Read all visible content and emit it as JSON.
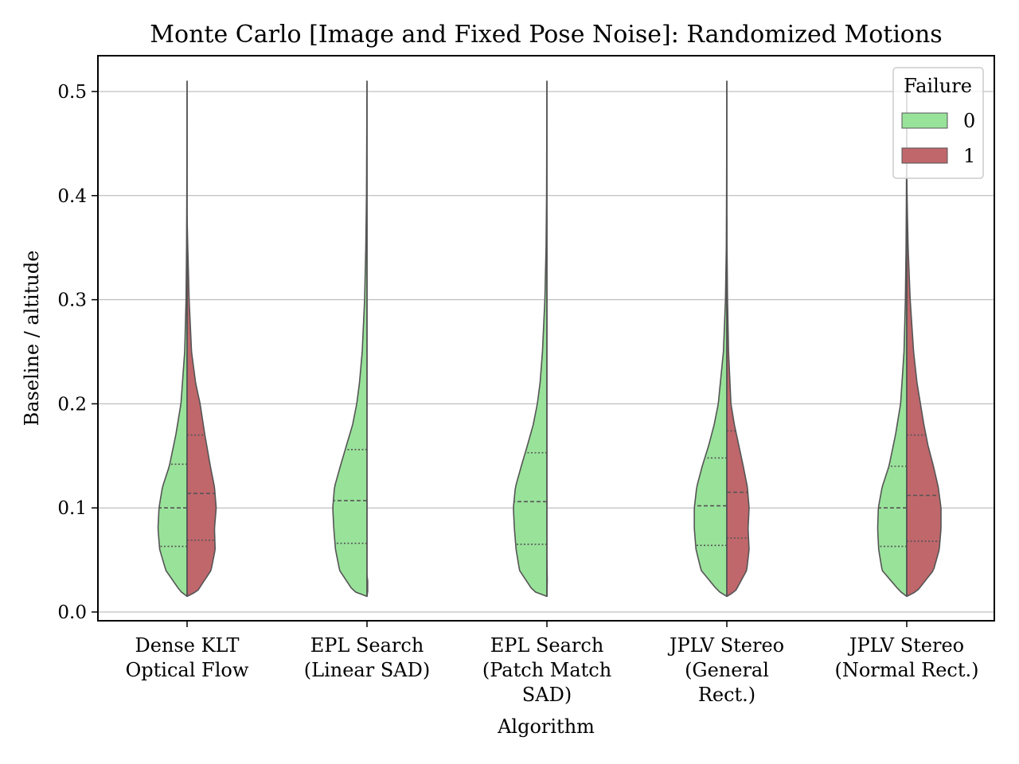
{
  "chart_data": {
    "type": "violin",
    "split": true,
    "title": "Monte Carlo [Image and Fixed Pose Noise]: Randomized Motions",
    "xlabel": "Algorithm",
    "ylabel": "Baseline / altitude",
    "ylim": [
      -0.01,
      0.54
    ],
    "yticks": [
      "0.0",
      "0.1",
      "0.2",
      "0.3",
      "0.4",
      "0.5"
    ],
    "grid": "horizontal",
    "categories": [
      [
        "Dense KLT",
        "Optical Flow"
      ],
      [
        "EPL Search",
        "(Linear SAD)"
      ],
      [
        "EPL Search",
        "(Patch Match",
        "SAD)"
      ],
      [
        "JPLV Stereo",
        "(General",
        "Rect.)"
      ],
      [
        "JPLV Stereo",
        "(Normal Rect.)"
      ]
    ],
    "legend": {
      "title": "Failure",
      "placement": "upper-right",
      "entries": [
        {
          "label": "0",
          "color": "#99e29a"
        },
        {
          "label": "1",
          "color": "#c0676b"
        }
      ]
    },
    "colors": {
      "failure_0": "#99e29a",
      "failure_1": "#c0676b",
      "outline": "#555555"
    },
    "violins": [
      {
        "left": {
          "profile": [
            [
              0.015,
              0.0
            ],
            [
              0.02,
              0.2
            ],
            [
              0.04,
              0.62
            ],
            [
              0.06,
              0.8
            ],
            [
              0.08,
              0.85
            ],
            [
              0.1,
              0.82
            ],
            [
              0.12,
              0.72
            ],
            [
              0.14,
              0.52
            ],
            [
              0.17,
              0.33
            ],
            [
              0.2,
              0.18
            ],
            [
              0.25,
              0.07
            ],
            [
              0.3,
              0.03
            ],
            [
              0.35,
              0.015
            ],
            [
              0.4,
              0.008
            ],
            [
              0.45,
              0.004
            ],
            [
              0.51,
              0.0
            ]
          ],
          "quartiles": [
            0.063,
            0.1,
            0.142
          ]
        },
        "right": {
          "profile": [
            [
              0.015,
              0.0
            ],
            [
              0.02,
              0.3
            ],
            [
              0.04,
              0.7
            ],
            [
              0.06,
              0.82
            ],
            [
              0.08,
              0.8
            ],
            [
              0.1,
              0.85
            ],
            [
              0.12,
              0.8
            ],
            [
              0.14,
              0.68
            ],
            [
              0.17,
              0.52
            ],
            [
              0.2,
              0.38
            ],
            [
              0.22,
              0.25
            ],
            [
              0.25,
              0.13
            ],
            [
              0.3,
              0.06
            ],
            [
              0.35,
              0.02
            ],
            [
              0.38,
              0.0
            ]
          ],
          "quartiles": [
            0.069,
            0.114,
            0.17
          ]
        }
      },
      {
        "left": {
          "profile": [
            [
              0.015,
              0.0
            ],
            [
              0.02,
              0.4
            ],
            [
              0.04,
              0.8
            ],
            [
              0.06,
              0.92
            ],
            [
              0.08,
              0.97
            ],
            [
              0.1,
              1.0
            ],
            [
              0.12,
              0.95
            ],
            [
              0.14,
              0.78
            ],
            [
              0.16,
              0.6
            ],
            [
              0.18,
              0.42
            ],
            [
              0.2,
              0.3
            ],
            [
              0.22,
              0.22
            ],
            [
              0.25,
              0.14
            ],
            [
              0.3,
              0.07
            ],
            [
              0.35,
              0.035
            ],
            [
              0.4,
              0.015
            ],
            [
              0.45,
              0.008
            ],
            [
              0.51,
              0.0
            ]
          ],
          "quartiles": [
            0.066,
            0.107,
            0.156
          ]
        },
        "right": {
          "profile": [
            [
              0.015,
              0.0
            ],
            [
              0.02,
              0.02
            ],
            [
              0.03,
              0.02
            ],
            [
              0.035,
              0.0
            ]
          ],
          "quartiles": []
        }
      },
      {
        "left": {
          "profile": [
            [
              0.015,
              0.0
            ],
            [
              0.02,
              0.4
            ],
            [
              0.04,
              0.8
            ],
            [
              0.06,
              0.9
            ],
            [
              0.08,
              0.95
            ],
            [
              0.1,
              0.98
            ],
            [
              0.12,
              0.92
            ],
            [
              0.14,
              0.75
            ],
            [
              0.16,
              0.57
            ],
            [
              0.18,
              0.4
            ],
            [
              0.2,
              0.28
            ],
            [
              0.22,
              0.2
            ],
            [
              0.25,
              0.13
            ],
            [
              0.3,
              0.06
            ],
            [
              0.35,
              0.025
            ],
            [
              0.4,
              0.01
            ],
            [
              0.45,
              0.005
            ],
            [
              0.51,
              0.0
            ]
          ],
          "quartiles": [
            0.065,
            0.106,
            0.153
          ]
        },
        "right": {
          "profile": [
            [
              0.015,
              0.0
            ],
            [
              0.03,
              0.01
            ],
            [
              0.05,
              0.0
            ]
          ],
          "quartiles": []
        }
      },
      {
        "left": {
          "profile": [
            [
              0.015,
              0.0
            ],
            [
              0.02,
              0.25
            ],
            [
              0.04,
              0.75
            ],
            [
              0.06,
              0.9
            ],
            [
              0.08,
              0.95
            ],
            [
              0.1,
              0.95
            ],
            [
              0.12,
              0.88
            ],
            [
              0.14,
              0.72
            ],
            [
              0.16,
              0.53
            ],
            [
              0.18,
              0.37
            ],
            [
              0.2,
              0.25
            ],
            [
              0.25,
              0.1
            ],
            [
              0.3,
              0.04
            ],
            [
              0.35,
              0.015
            ],
            [
              0.4,
              0.008
            ],
            [
              0.45,
              0.004
            ],
            [
              0.51,
              0.0
            ]
          ],
          "quartiles": [
            0.064,
            0.102,
            0.148
          ]
        },
        "right": {
          "profile": [
            [
              0.015,
              0.0
            ],
            [
              0.02,
              0.25
            ],
            [
              0.04,
              0.58
            ],
            [
              0.06,
              0.65
            ],
            [
              0.08,
              0.62
            ],
            [
              0.1,
              0.65
            ],
            [
              0.12,
              0.6
            ],
            [
              0.14,
              0.48
            ],
            [
              0.16,
              0.35
            ],
            [
              0.18,
              0.22
            ],
            [
              0.2,
              0.12
            ],
            [
              0.25,
              0.05
            ],
            [
              0.3,
              0.02
            ],
            [
              0.35,
              0.005
            ],
            [
              0.38,
              0.0
            ]
          ],
          "quartiles": [
            0.071,
            0.115,
            0.174
          ]
        }
      },
      {
        "left": {
          "profile": [
            [
              0.015,
              0.0
            ],
            [
              0.02,
              0.2
            ],
            [
              0.04,
              0.72
            ],
            [
              0.06,
              0.82
            ],
            [
              0.08,
              0.85
            ],
            [
              0.1,
              0.83
            ],
            [
              0.12,
              0.72
            ],
            [
              0.14,
              0.52
            ],
            [
              0.17,
              0.33
            ],
            [
              0.2,
              0.18
            ],
            [
              0.25,
              0.08
            ],
            [
              0.3,
              0.04
            ],
            [
              0.35,
              0.02
            ],
            [
              0.4,
              0.01
            ],
            [
              0.45,
              0.005
            ],
            [
              0.51,
              0.0
            ]
          ],
          "quartiles": [
            0.063,
            0.1,
            0.14
          ]
        },
        "right": {
          "profile": [
            [
              0.015,
              0.0
            ],
            [
              0.02,
              0.3
            ],
            [
              0.04,
              0.78
            ],
            [
              0.06,
              0.95
            ],
            [
              0.08,
              1.0
            ],
            [
              0.1,
              1.0
            ],
            [
              0.12,
              0.92
            ],
            [
              0.14,
              0.78
            ],
            [
              0.16,
              0.62
            ],
            [
              0.18,
              0.5
            ],
            [
              0.2,
              0.4
            ],
            [
              0.22,
              0.3
            ],
            [
              0.25,
              0.2
            ],
            [
              0.28,
              0.14
            ],
            [
              0.3,
              0.1
            ],
            [
              0.35,
              0.04
            ],
            [
              0.38,
              0.02
            ],
            [
              0.42,
              0.0
            ]
          ],
          "quartiles": [
            0.068,
            0.112,
            0.17
          ]
        }
      }
    ]
  }
}
